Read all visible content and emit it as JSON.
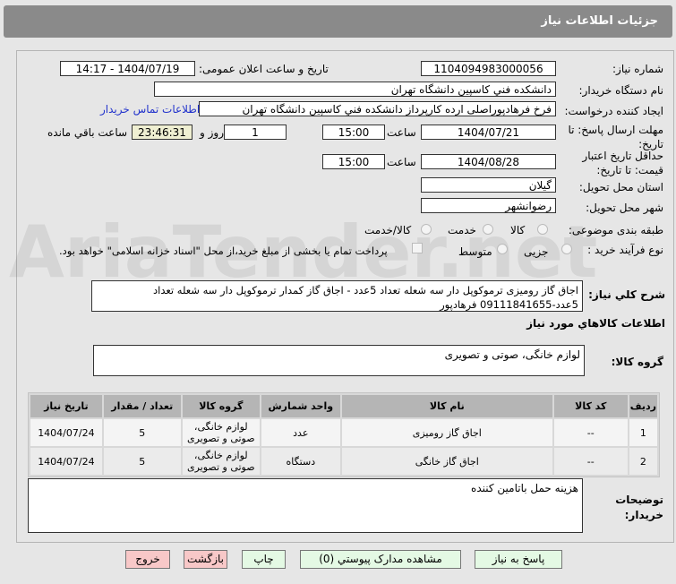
{
  "header": {
    "title": "جزئیات اطلاعات نیاز"
  },
  "watermark": "AriaTender.net",
  "form": {
    "need_number_label": "شماره نیاز:",
    "need_number": "1104094983000056",
    "announce_label": "تاریخ و ساعت اعلان عمومی:",
    "announce_value": "1404/07/19 - 14:17",
    "buyer_org_label": "نام دستگاه خریدار:",
    "buyer_org": "دانشکده فني کاسپین دانشگاه تهران",
    "creator_label": "ایجاد کننده درخواست:",
    "creator": "فرخ فرهادپوراصلی ارده کارپرداز دانشکده فني کاسپین دانشگاه تهران",
    "contact_link": "اطلاعات تماس خریدار",
    "deadline_label": "مهلت ارسال پاسخ: تا تاریخ:",
    "deadline_date": "1404/07/21",
    "time_label": "ساعت",
    "deadline_time": "15:00",
    "days": "1",
    "days_label": "روز و",
    "remaining": "23:46:31",
    "remaining_label": "ساعت باقي مانده",
    "validity_label": "حداقل تاریخ اعتبار قیمت: تا تاریخ:",
    "validity_date": "1404/08/28",
    "validity_time": "15:00",
    "province_label": "استان محل تحویل:",
    "province": "گیلان",
    "city_label": "شهر محل تحویل:",
    "city": "رضوانشهر",
    "category_label": "طبقه بندی موضوعی:",
    "category_options": [
      "کالا",
      "خدمت",
      "کالا/خدمت"
    ],
    "category_selected": "کالا",
    "purchase_label": "نوع فرآیند خرید :",
    "purchase_options": [
      "جزیی",
      "متوسط"
    ],
    "payment_note": "پرداخت تمام یا بخشی از مبلغ خرید،از محل \"اسناد خزانه اسلامی\" خواهد بود.",
    "description_label": "شرح کلي نیاز:",
    "description": "اجاق گاز رومیزی ترموکوپل دار سه شعله  تعداد 5عدد - اجاق گاز کمدار ترموکوپل دار سه شعله  تعداد 5عدد-09111841655 فرهادپور",
    "goods_info_title": "اطلاعات کالاهاي مورد نیاز",
    "goods_group_label": "گروه کالا:",
    "goods_group": "لوازم خانگی، صوتی و تصویری"
  },
  "table": {
    "headers": [
      "ردیف",
      "کد کالا",
      "نام کالا",
      "واحد شمارش",
      "گروه کالا",
      "تعداد / مقدار",
      "تاریخ نیاز"
    ],
    "rows": [
      [
        "1",
        "--",
        "اجاق گاز رومیزی",
        "عدد",
        "لوازم خانگی، صوتی و تصویری",
        "5",
        "1404/07/24"
      ],
      [
        "2",
        "--",
        "اجاق گاز خانگی",
        "دستگاه",
        "لوازم خانگی، صوتی و تصویری",
        "5",
        "1404/07/24"
      ]
    ]
  },
  "notes": {
    "label": "توضیحات خریدار:",
    "value": "هزینه حمل  باتامین کننده"
  },
  "buttons": {
    "reply": "پاسخ به نیاز",
    "attachments": "مشاهده مدارک پیوستي (0)",
    "print": "چاپ",
    "back": "بازگشت",
    "exit": "خروج"
  }
}
